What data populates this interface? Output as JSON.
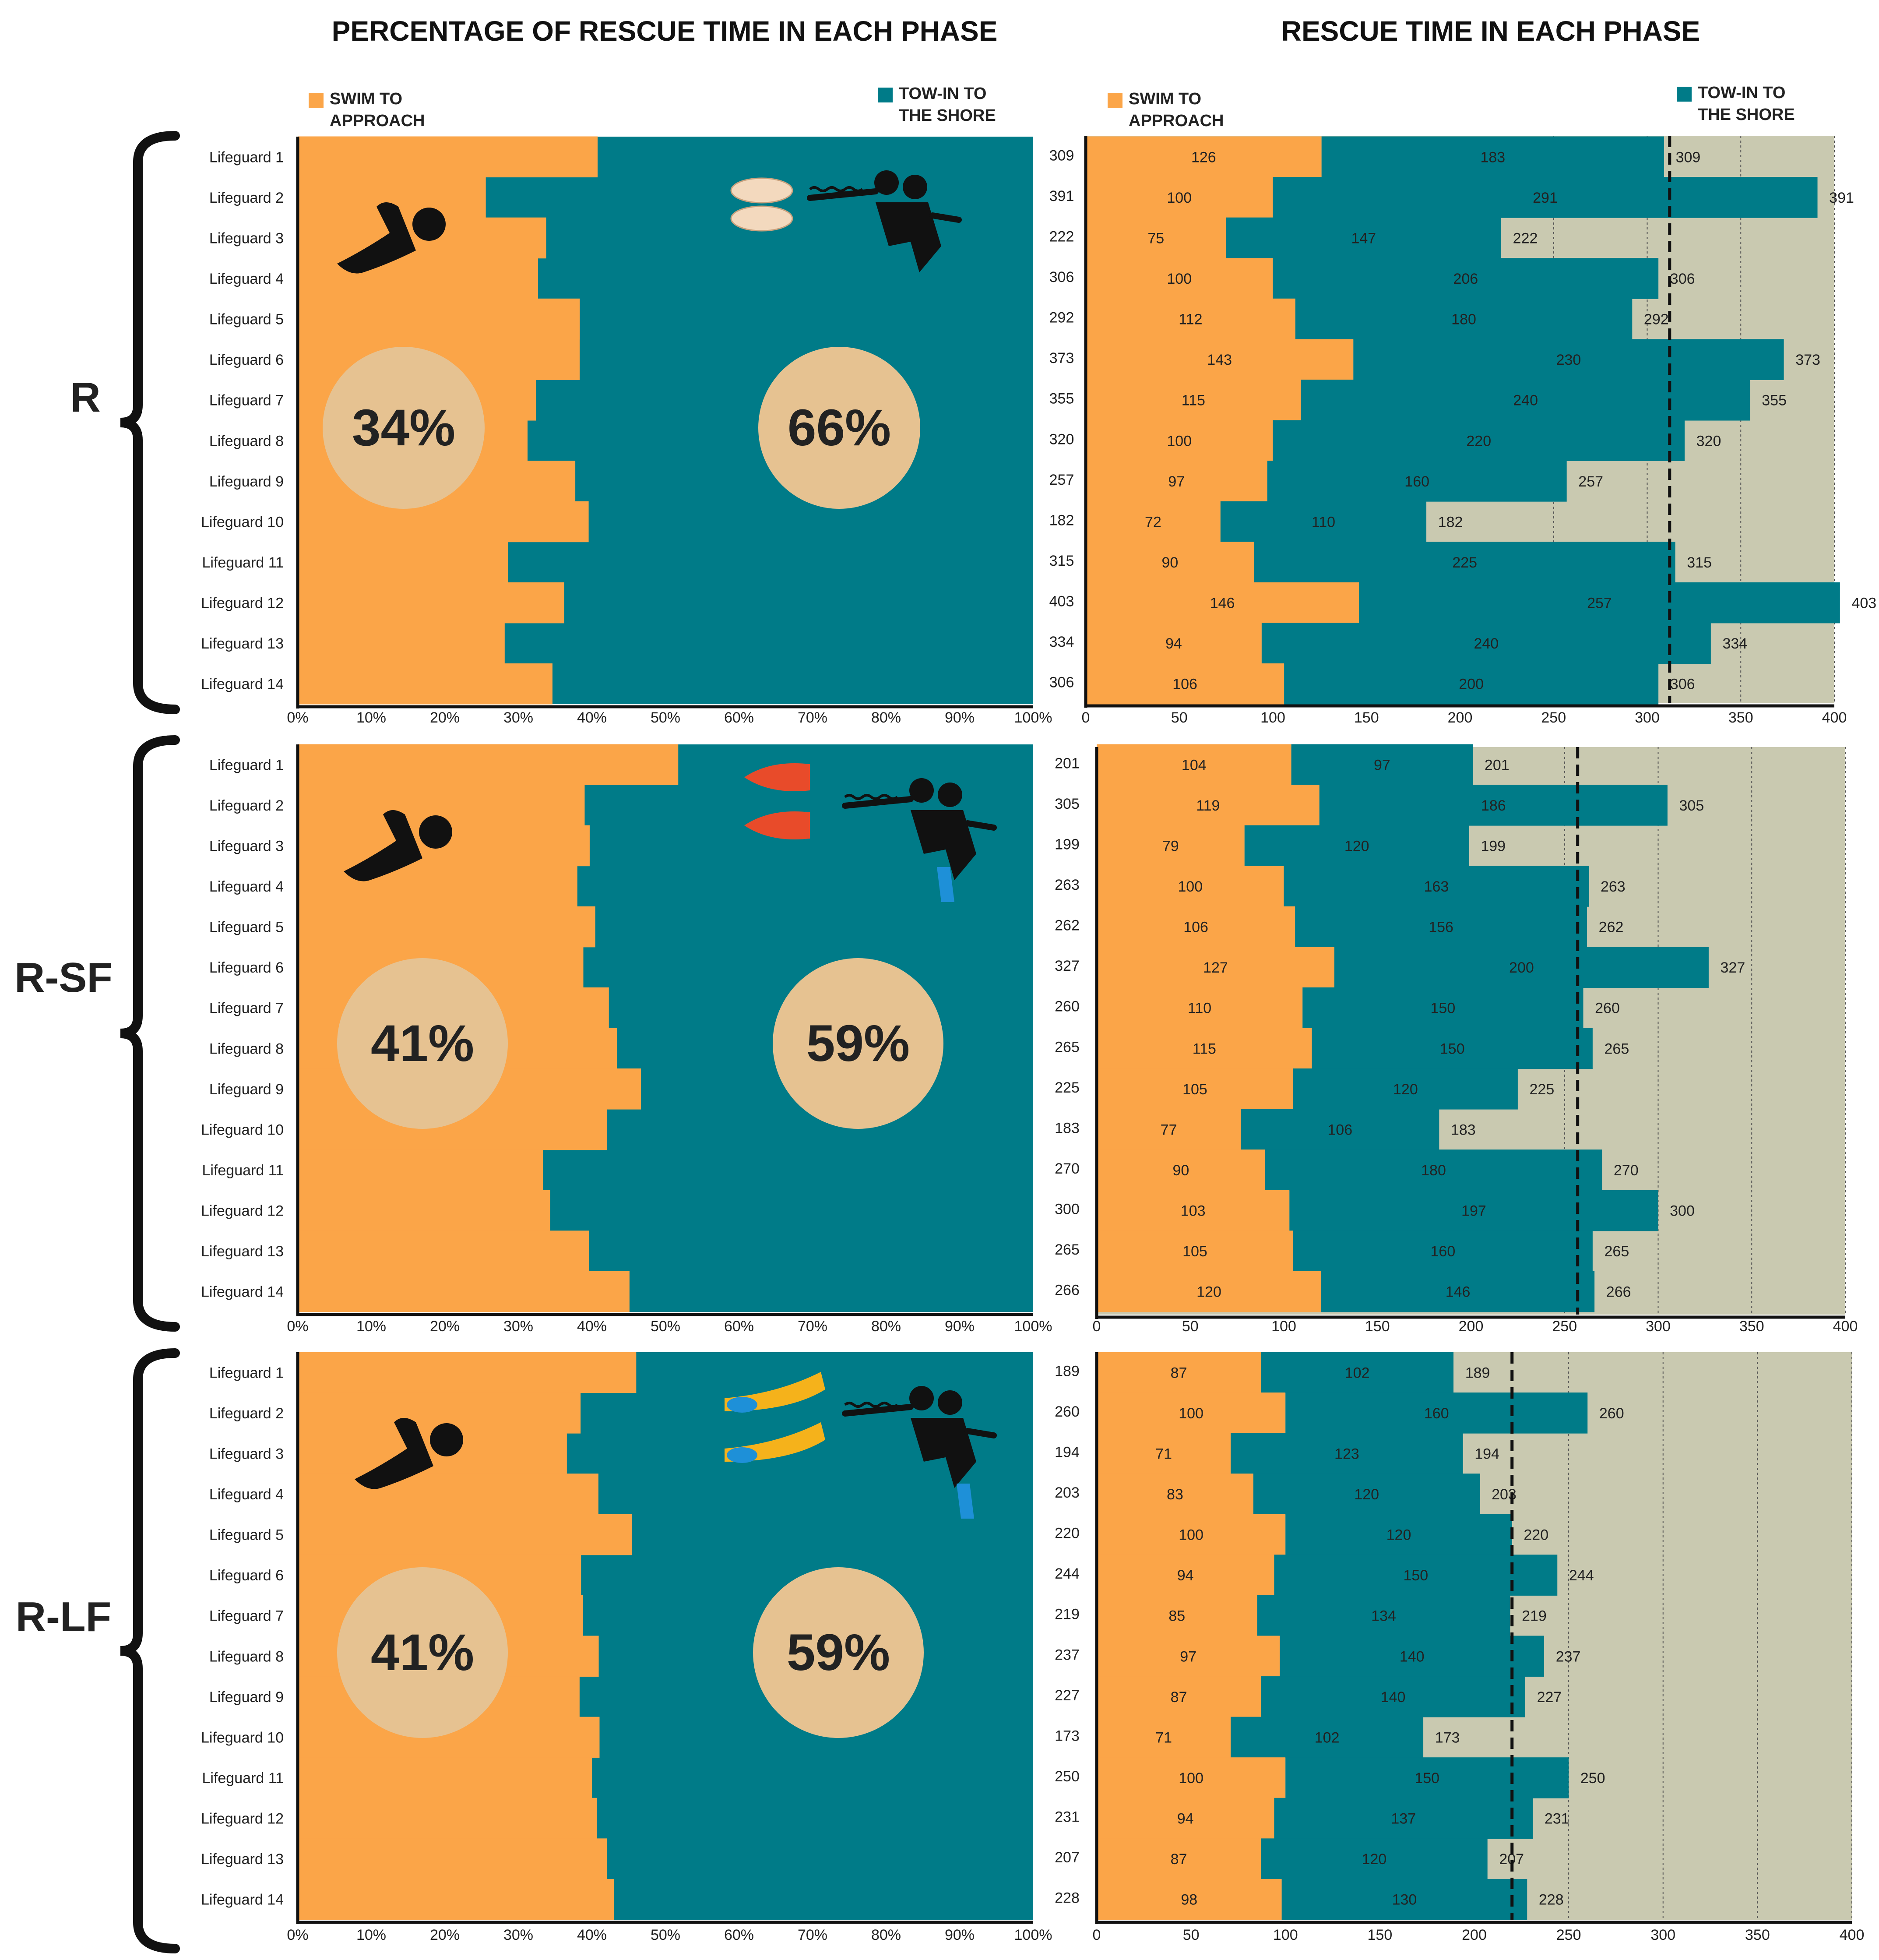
{
  "titles": {
    "left": "PERCENTAGE OF RESCUE TIME IN EACH PHASE",
    "right": "RESCUE TIME IN EACH PHASE"
  },
  "legend": {
    "swim": "SWIM TO APPROACH",
    "tow": "TOW-IN TO THE SHORE"
  },
  "colors": {
    "swim": "#FBA548",
    "tow": "#007B88",
    "background": "#C9C9B0",
    "bubble": "#E6C291",
    "text": "#111111"
  },
  "icons": [
    "swimmer-icon",
    "rescuer-towing-icon",
    "hands-icon",
    "short-fins-icon",
    "long-fins-icon"
  ],
  "chart_data": [
    {
      "group": "R",
      "lifeguards": [
        "Lifeguard 1",
        "Lifeguard 2",
        "Lifeguard 3",
        "Lifeguard 4",
        "Lifeguard 5",
        "Lifeguard 6",
        "Lifeguard 7",
        "Lifeguard 8",
        "Lifeguard 9",
        "Lifeguard 10",
        "Lifeguard 11",
        "Lifeguard 12",
        "Lifeguard 13",
        "Lifeguard 14"
      ],
      "swim": [
        126,
        100,
        75,
        100,
        112,
        143,
        115,
        100,
        97,
        72,
        90,
        146,
        94,
        106
      ],
      "tow": [
        183,
        291,
        147,
        206,
        180,
        230,
        240,
        220,
        160,
        110,
        225,
        257,
        240,
        200
      ],
      "total": [
        309,
        391,
        222,
        306,
        292,
        373,
        355,
        320,
        257,
        182,
        315,
        403,
        334,
        306
      ],
      "mean_total": 312,
      "pct_swim": "34%",
      "pct_tow": "66%",
      "xmax": 400
    },
    {
      "group": "R-SF",
      "lifeguards": [
        "Lifeguard 1",
        "Lifeguard 2",
        "Lifeguard 3",
        "Lifeguard 4",
        "Lifeguard 5",
        "Lifeguard 6",
        "Lifeguard 7",
        "Lifeguard 8",
        "Lifeguard 9",
        "Lifeguard 10",
        "Lifeguard 11",
        "Lifeguard 12",
        "Lifeguard 13",
        "Lifeguard 14"
      ],
      "swim": [
        104,
        119,
        79,
        100,
        106,
        127,
        110,
        115,
        105,
        77,
        90,
        103,
        105,
        120
      ],
      "tow": [
        97,
        186,
        120,
        163,
        156,
        200,
        150,
        150,
        120,
        106,
        180,
        197,
        160,
        146
      ],
      "total": [
        201,
        305,
        199,
        263,
        262,
        327,
        260,
        265,
        225,
        183,
        270,
        300,
        265,
        266
      ],
      "mean_total": 257,
      "pct_swim": "41%",
      "pct_tow": "59%",
      "xmax": 400
    },
    {
      "group": "R-LF",
      "lifeguards": [
        "Lifeguard 1",
        "Lifeguard 2",
        "Lifeguard 3",
        "Lifeguard 4",
        "Lifeguard 5",
        "Lifeguard 6",
        "Lifeguard 7",
        "Lifeguard 8",
        "Lifeguard 9",
        "Lifeguard 10",
        "Lifeguard 11",
        "Lifeguard 12",
        "Lifeguard 13",
        "Lifeguard 14"
      ],
      "swim": [
        87,
        100,
        71,
        83,
        100,
        94,
        85,
        97,
        87,
        71,
        100,
        94,
        87,
        98
      ],
      "tow": [
        102,
        160,
        123,
        120,
        120,
        150,
        134,
        140,
        140,
        102,
        150,
        137,
        120,
        130
      ],
      "total": [
        189,
        260,
        194,
        203,
        220,
        244,
        219,
        237,
        227,
        173,
        250,
        231,
        207,
        228
      ],
      "mean_total": 220,
      "pct_swim": "41%",
      "pct_tow": "59%",
      "xmax": 400
    }
  ],
  "axes": {
    "pct_ticks": [
      "0%",
      "10%",
      "20%",
      "30%",
      "40%",
      "50%",
      "60%",
      "70%",
      "80%",
      "90%",
      "100%"
    ],
    "time_ticks": [
      "0",
      "50",
      "100",
      "150",
      "200",
      "250",
      "300",
      "350",
      "400"
    ]
  }
}
